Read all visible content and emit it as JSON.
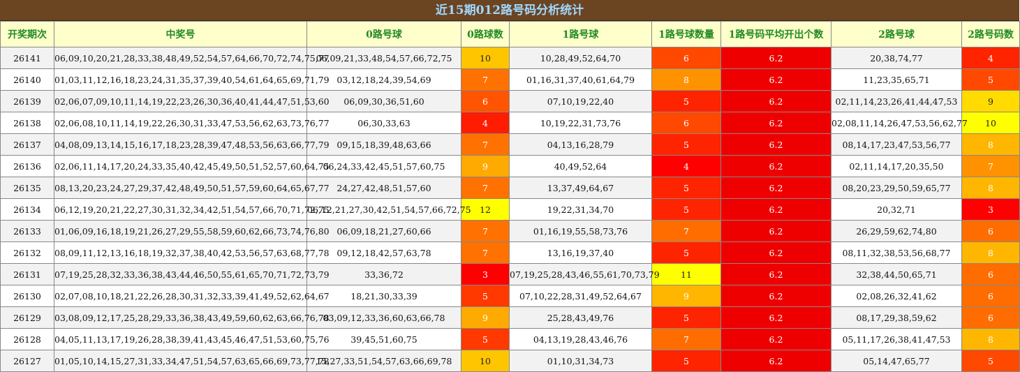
{
  "title": "近15期012路号码分析统计",
  "headers": [
    "开奖期次",
    "中奖号",
    "0路号球",
    "0路球数",
    "1路号球",
    "1路号球数量",
    "1路号码平均开出个数",
    "2路号球",
    "2路号码数"
  ],
  "rows": [
    {
      "period": "26141",
      "winning": "06,09,10,20,21,28,33,38,48,49,52,54,57,64,66,70,72,74,75,77",
      "r0": "06,09,21,33,48,54,57,66,72,75",
      "r0_count": "10",
      "r1": "10,28,49,52,64,70",
      "r1_count": "6",
      "r1_avg": "6.2",
      "r2": "20,38,74,77",
      "r2_count": "4"
    },
    {
      "period": "26140",
      "winning": "01,03,11,12,16,18,23,24,31,35,37,39,40,54,61,64,65,69,71,79",
      "r0": "03,12,18,24,39,54,69",
      "r0_count": "7",
      "r1": "01,16,31,37,40,61,64,79",
      "r1_count": "8",
      "r1_avg": "6.2",
      "r2": "11,23,35,65,71",
      "r2_count": "5"
    },
    {
      "period": "26139",
      "winning": "02,06,07,09,10,11,14,19,22,23,26,30,36,40,41,44,47,51,53,60",
      "r0": "06,09,30,36,51,60",
      "r0_count": "6",
      "r1": "07,10,19,22,40",
      "r1_count": "5",
      "r1_avg": "6.2",
      "r2": "02,11,14,23,26,41,44,47,53",
      "r2_count": "9"
    },
    {
      "period": "26138",
      "winning": "02,06,08,10,11,14,19,22,26,30,31,33,47,53,56,62,63,73,76,77",
      "r0": "06,30,33,63",
      "r0_count": "4",
      "r1": "10,19,22,31,73,76",
      "r1_count": "6",
      "r1_avg": "6.2",
      "r2": "02,08,11,14,26,47,53,56,62,77",
      "r2_count": "10"
    },
    {
      "period": "26137",
      "winning": "04,08,09,13,14,15,16,17,18,23,28,39,47,48,53,56,63,66,77,79",
      "r0": "09,15,18,39,48,63,66",
      "r0_count": "7",
      "r1": "04,13,16,28,79",
      "r1_count": "5",
      "r1_avg": "6.2",
      "r2": "08,14,17,23,47,53,56,77",
      "r2_count": "8"
    },
    {
      "period": "26136",
      "winning": "02,06,11,14,17,20,24,33,35,40,42,45,49,50,51,52,57,60,64,75",
      "r0": "06,24,33,42,45,51,57,60,75",
      "r0_count": "9",
      "r1": "40,49,52,64",
      "r1_count": "4",
      "r1_avg": "6.2",
      "r2": "02,11,14,17,20,35,50",
      "r2_count": "7"
    },
    {
      "period": "26135",
      "winning": "08,13,20,23,24,27,29,37,42,48,49,50,51,57,59,60,64,65,67,77",
      "r0": "24,27,42,48,51,57,60",
      "r0_count": "7",
      "r1": "13,37,49,64,67",
      "r1_count": "5",
      "r1_avg": "6.2",
      "r2": "08,20,23,29,50,59,65,77",
      "r2_count": "8"
    },
    {
      "period": "26134",
      "winning": "06,12,19,20,21,22,27,30,31,32,34,42,51,54,57,66,70,71,72,75",
      "r0": "06,12,21,27,30,42,51,54,57,66,72,75",
      "r0_count": "12",
      "r1": "19,22,31,34,70",
      "r1_count": "5",
      "r1_avg": "6.2",
      "r2": "20,32,71",
      "r2_count": "3"
    },
    {
      "period": "26133",
      "winning": "01,06,09,16,18,19,21,26,27,29,55,58,59,60,62,66,73,74,76,80",
      "r0": "06,09,18,21,27,60,66",
      "r0_count": "7",
      "r1": "01,16,19,55,58,73,76",
      "r1_count": "7",
      "r1_avg": "6.2",
      "r2": "26,29,59,62,74,80",
      "r2_count": "6"
    },
    {
      "period": "26132",
      "winning": "08,09,11,12,13,16,18,19,32,37,38,40,42,53,56,57,63,68,77,78",
      "r0": "09,12,18,42,57,63,78",
      "r0_count": "7",
      "r1": "13,16,19,37,40",
      "r1_count": "5",
      "r1_avg": "6.2",
      "r2": "08,11,32,38,53,56,68,77",
      "r2_count": "8"
    },
    {
      "period": "26131",
      "winning": "07,19,25,28,32,33,36,38,43,44,46,50,55,61,65,70,71,72,73,79",
      "r0": "33,36,72",
      "r0_count": "3",
      "r1": "07,19,25,28,43,46,55,61,70,73,79",
      "r1_count": "11",
      "r1_avg": "6.2",
      "r2": "32,38,44,50,65,71",
      "r2_count": "6"
    },
    {
      "period": "26130",
      "winning": "02,07,08,10,18,21,22,26,28,30,31,32,33,39,41,49,52,62,64,67",
      "r0": "18,21,30,33,39",
      "r0_count": "5",
      "r1": "07,10,22,28,31,49,52,64,67",
      "r1_count": "9",
      "r1_avg": "6.2",
      "r2": "02,08,26,32,41,62",
      "r2_count": "6"
    },
    {
      "period": "26129",
      "winning": "03,08,09,12,17,25,28,29,33,36,38,43,49,59,60,62,63,66,76,78",
      "r0": "03,09,12,33,36,60,63,66,78",
      "r0_count": "9",
      "r1": "25,28,43,49,76",
      "r1_count": "5",
      "r1_avg": "6.2",
      "r2": "08,17,29,38,59,62",
      "r2_count": "6"
    },
    {
      "period": "26128",
      "winning": "04,05,11,13,17,19,26,28,38,39,41,43,45,46,47,51,53,60,75,76",
      "r0": "39,45,51,60,75",
      "r0_count": "5",
      "r1": "04,13,19,28,43,46,76",
      "r1_count": "7",
      "r1_avg": "6.2",
      "r2": "05,11,17,26,38,41,47,53",
      "r2_count": "8"
    },
    {
      "period": "26127",
      "winning": "01,05,10,14,15,27,31,33,34,47,51,54,57,63,65,66,69,73,77,78",
      "r0": "15,27,33,51,54,57,63,66,69,78",
      "r0_count": "10",
      "r1": "01,10,31,34,73",
      "r1_count": "5",
      "r1_avg": "6.2",
      "r2": "05,14,47,65,77",
      "r2_count": "5"
    }
  ],
  "colors": {
    "title_bg": "#6b4422",
    "title_text": "#9fd8ff",
    "header_bg": "#ffffcc",
    "header_text": "#228b22",
    "avg_bg": "#ee0000",
    "scale_low": "#ff0000",
    "scale_high": "#ffff00"
  }
}
